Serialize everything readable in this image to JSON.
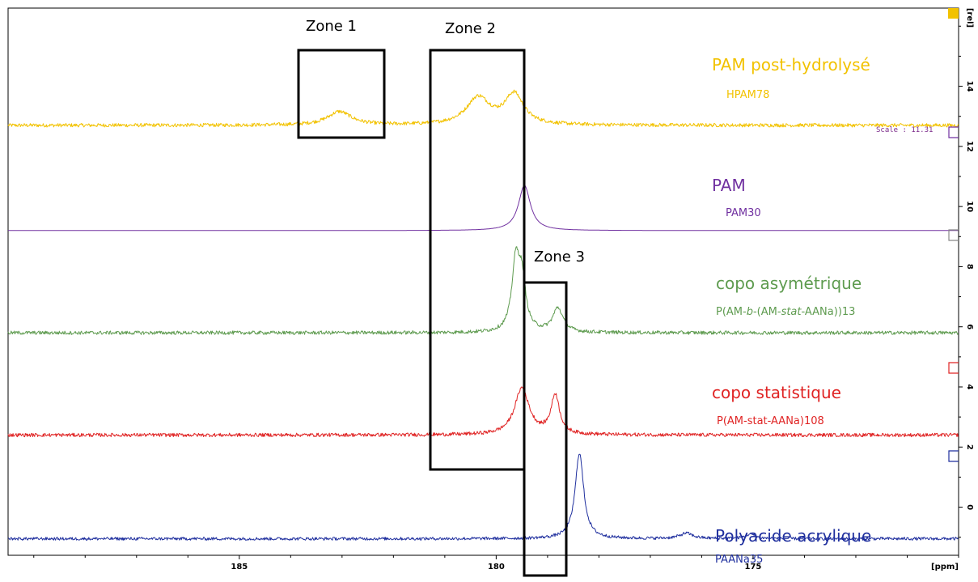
{
  "chart_data": {
    "type": "line",
    "title": "",
    "xlabel": "[ppm]",
    "ylabel": "[rel]",
    "x_axis": {
      "range": [
        189.5,
        171.0
      ],
      "reversed": true,
      "ticks": [
        185,
        180,
        175
      ],
      "tick_labels": [
        "185",
        "180",
        "175"
      ]
    },
    "y_axis": {
      "range": [
        -1.6,
        16.6
      ],
      "ticks": [
        0,
        2,
        4,
        6,
        8,
        10,
        12,
        14
      ],
      "tick_labels": [
        "0",
        "2",
        "4",
        "6",
        "8",
        "10",
        "12",
        "14"
      ],
      "side": "right"
    },
    "scale_note": "Scale : 11.31",
    "zones": [
      {
        "label": "Zone 1",
        "ppm": [
          183.6,
          182.2
        ]
      },
      {
        "label": "Zone 2",
        "ppm": [
          181.0,
          178.5
        ]
      },
      {
        "label": "Zone 3",
        "ppm": [
          178.6,
          177.5
        ]
      }
    ],
    "series": [
      {
        "name": "PAM post-hydrolysé",
        "code": "HPAM78",
        "color": "#f2c200",
        "baseline": 12.7,
        "peaks": [
          {
            "ppm": 183.05,
            "height": 0.45,
            "width": 0.28
          },
          {
            "ppm": 180.35,
            "height": 0.9,
            "width": 0.28
          },
          {
            "ppm": 179.65,
            "height": 1.0,
            "width": 0.22
          }
        ],
        "noise": 0.06
      },
      {
        "name": "PAM",
        "code": "PAM30",
        "color": "#7030a0",
        "baseline": 9.2,
        "peaks": [
          {
            "ppm": 179.45,
            "height": 1.5,
            "width": 0.14
          }
        ],
        "noise": 0.0
      },
      {
        "name": "copo asymétrique",
        "code_parts": [
          "P(AM-",
          "b",
          "-(AM-",
          "stat",
          "-AANa))13"
        ],
        "color": "#5e9b4f",
        "baseline": 5.8,
        "peaks": [
          {
            "ppm": 179.62,
            "height": 2.2,
            "width": 0.09
          },
          {
            "ppm": 179.5,
            "height": 1.6,
            "width": 0.09
          },
          {
            "ppm": 178.8,
            "height": 0.8,
            "width": 0.12
          }
        ],
        "noise": 0.06
      },
      {
        "name": "copo statistique",
        "code": "P(AM-stat-AANa)108",
        "color": "#e02424",
        "baseline": 2.4,
        "peaks": [
          {
            "ppm": 179.5,
            "height": 1.55,
            "width": 0.17
          },
          {
            "ppm": 178.85,
            "height": 1.3,
            "width": 0.1
          }
        ],
        "noise": 0.06
      },
      {
        "name": "Polyacide acrylique",
        "code": "PAANa35",
        "color": "#1f2f9e",
        "baseline": -1.05,
        "peaks": [
          {
            "ppm": 178.38,
            "height": 2.85,
            "width": 0.1
          },
          {
            "ppm": 176.3,
            "height": 0.18,
            "width": 0.15
          },
          {
            "ppm": 175.05,
            "height": 0.15,
            "width": 0.12
          }
        ],
        "noise": 0.05
      }
    ]
  }
}
